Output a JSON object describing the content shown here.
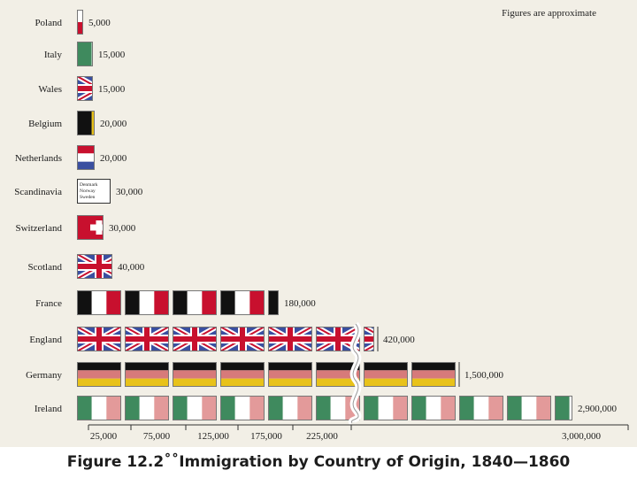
{
  "chart_data": {
    "type": "pictograph-bar",
    "title": "Figure 12.2˚˚Immigration by Country of Origin, 1840—1860",
    "note": "Figures are approximate",
    "unit_per_flag": 50000,
    "categories": [
      "Poland",
      "Italy",
      "Wales",
      "Belgium",
      "Netherlands",
      "Scandinavia",
      "Switzerland",
      "Scotland",
      "France",
      "England",
      "Germany",
      "Ireland"
    ],
    "values": [
      5000,
      15000,
      15000,
      20000,
      20000,
      30000,
      30000,
      40000,
      180000,
      420000,
      1500000,
      2900000
    ],
    "value_labels": [
      "5,000",
      "15,000",
      "15,000",
      "20,000",
      "20,000",
      "30,000",
      "30,000",
      "40,000",
      "180,000",
      "420,000",
      "1,500,000",
      "2,900,000"
    ],
    "flags": [
      "poland",
      "italy",
      "wales",
      "belgium",
      "netherlands",
      "scandinavia",
      "switzerland",
      "scotland",
      "france",
      "england",
      "germany",
      "ireland"
    ],
    "scandinavia_flag_text": [
      "Denmark",
      "Norway",
      "Sweden"
    ],
    "x_ticks": [
      "25,000",
      "75,000",
      "125,000",
      "175,000",
      "225,000",
      "3,000,000"
    ],
    "axis_break": true
  },
  "colors": {
    "background": "#f2efe6",
    "union_blue": "#3a4fa0",
    "red": "#c8102e",
    "black": "#111111",
    "gold": "#e8c21a",
    "green": "#3f8a5e",
    "light_red": "#e39a9a",
    "white": "#ffffff"
  }
}
